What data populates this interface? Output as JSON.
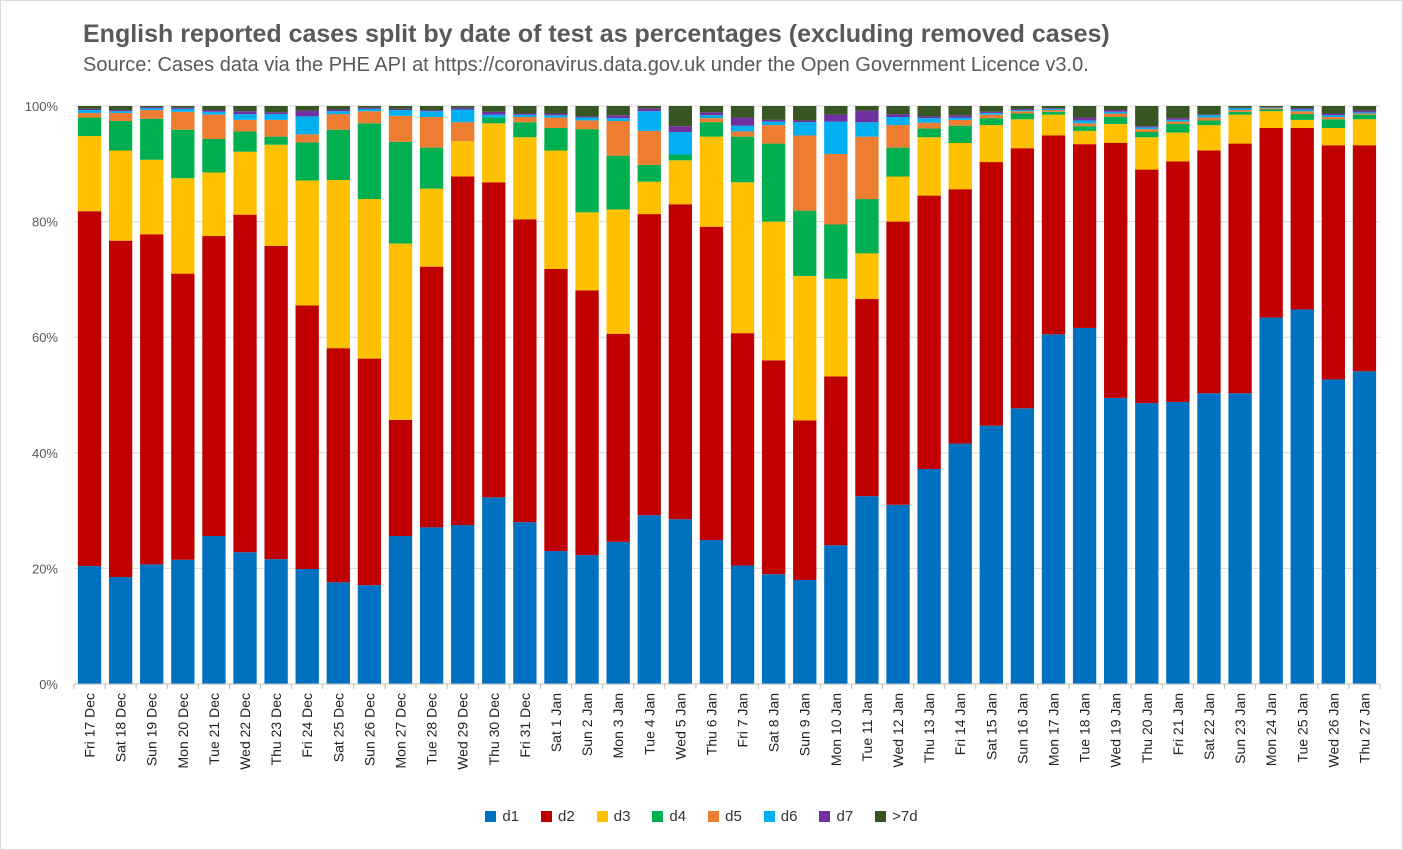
{
  "chart_data": {
    "type": "bar",
    "stacked": true,
    "title": "English reported cases split by date of test as percentages (excluding removed cases)",
    "subtitle": "Source: Cases data via the PHE API at https://coronavirus.data.gov.uk under the Open Government Licence v3.0.",
    "xlabel": "",
    "ylabel": "",
    "ylim": [
      0,
      100
    ],
    "yticks": [
      "0%",
      "20%",
      "40%",
      "60%",
      "80%",
      "100%"
    ],
    "grid": true,
    "legend_position": "bottom",
    "categories": [
      "Fri 17 Dec",
      "Sat 18 Dec",
      "Sun 19 Dec",
      "Mon 20 Dec",
      "Tue 21 Dec",
      "Wed 22 Dec",
      "Thu 23 Dec",
      "Fri 24 Dec",
      "Sat 25 Dec",
      "Sun 26 Dec",
      "Mon 27 Dec",
      "Tue 28 Dec",
      "Wed 29 Dec",
      "Thu 30 Dec",
      "Fri 31 Dec",
      "Sat 1 Jan",
      "Sun 2 Jan",
      "Mon 3 Jan",
      "Tue 4 Jan",
      "Wed 5 Jan",
      "Thu 6 Jan",
      "Fri 7 Jan",
      "Sat 8 Jan",
      "Sun 9 Jan",
      "Mon 10 Jan",
      "Tue 11 Jan",
      "Wed 12 Jan",
      "Thu 13 Jan",
      "Fri 14 Jan",
      "Sat 15 Jan",
      "Sun 16 Jan",
      "Mon 17 Jan",
      "Tue 18 Jan",
      "Wed 19 Jan",
      "Thu 20 Jan",
      "Fri 21 Jan",
      "Sat 22 Jan",
      "Sun 23 Jan",
      "Mon 24 Jan",
      "Tue 25 Jan",
      "Wed 26 Jan",
      "Thu 27 Jan"
    ],
    "series": [
      {
        "name": "d1",
        "color": "#0070c0",
        "values": [
          20.4,
          18.5,
          20.7,
          21.5,
          25.6,
          22.8,
          21.6,
          19.9,
          17.6,
          17.1,
          25.6,
          27.1,
          27.5,
          32.3,
          28.0,
          23.0,
          22.3,
          24.6,
          29.2,
          28.5,
          24.9,
          20.5,
          19.0,
          18.0,
          24.0,
          32.5,
          31.0,
          37.2,
          41.6,
          44.7,
          47.7,
          60.5,
          61.6,
          49.5,
          48.6,
          48.8,
          50.3,
          50.3,
          63.4,
          64.8,
          52.7,
          54.1
        ]
      },
      {
        "name": "d2",
        "color": "#c00000",
        "values": [
          61.4,
          58.2,
          57.1,
          49.5,
          51.9,
          58.4,
          54.2,
          45.6,
          40.5,
          39.2,
          20.1,
          45.1,
          60.3,
          54.5,
          52.4,
          48.8,
          45.8,
          36.0,
          52.1,
          54.5,
          54.2,
          40.2,
          37.0,
          27.6,
          29.2,
          34.1,
          49.0,
          47.3,
          44.0,
          45.6,
          45.0,
          34.4,
          31.8,
          44.1,
          40.4,
          41.6,
          42.0,
          43.2,
          32.8,
          31.4,
          40.5,
          39.1
        ]
      },
      {
        "name": "d3",
        "color": "#ffc000",
        "values": [
          13.0,
          15.6,
          12.9,
          16.5,
          11.0,
          10.9,
          17.5,
          21.6,
          29.1,
          27.6,
          30.5,
          13.5,
          6.1,
          10.2,
          14.2,
          20.5,
          13.5,
          21.5,
          5.6,
          7.6,
          15.6,
          26.1,
          24.0,
          25.0,
          16.9,
          7.9,
          7.8,
          10.1,
          8.0,
          6.4,
          5.0,
          3.6,
          2.3,
          3.3,
          5.6,
          5.0,
          4.4,
          5.0,
          2.9,
          1.4,
          3.0,
          4.5
        ]
      },
      {
        "name": "d4",
        "color": "#00b050",
        "values": [
          3.2,
          5.1,
          7.1,
          8.4,
          5.8,
          3.5,
          1.4,
          6.6,
          8.7,
          13.1,
          17.6,
          7.1,
          0.0,
          1.0,
          2.6,
          3.9,
          14.4,
          9.3,
          2.9,
          1.0,
          2.5,
          7.9,
          13.5,
          11.3,
          9.4,
          9.4,
          5.0,
          1.5,
          3.0,
          1.2,
          1.0,
          0.5,
          0.8,
          1.2,
          0.9,
          1.5,
          0.8,
          0.5,
          0.3,
          1.0,
          1.5,
          0.8
        ]
      },
      {
        "name": "d5",
        "color": "#ed7d31",
        "values": [
          0.8,
          1.4,
          1.5,
          3.1,
          4.2,
          2.0,
          2.9,
          1.4,
          2.7,
          2.1,
          4.5,
          5.3,
          3.3,
          0.0,
          0.9,
          1.8,
          1.5,
          6.0,
          5.9,
          0.0,
          0.7,
          0.9,
          3.2,
          13.0,
          12.2,
          10.8,
          3.9,
          1.0,
          1.0,
          0.6,
          0.4,
          0.3,
          0.5,
          0.6,
          0.5,
          0.4,
          0.5,
          0.3,
          0.2,
          0.5,
          0.4,
          0.2
        ]
      },
      {
        "name": "d6",
        "color": "#00b0f0",
        "values": [
          0.5,
          0.3,
          0.3,
          0.5,
          0.5,
          1.0,
          1.0,
          3.1,
          0.5,
          0.4,
          1.0,
          1.0,
          2.2,
          0.5,
          0.4,
          0.4,
          0.5,
          0.5,
          3.4,
          3.9,
          0.5,
          1.0,
          0.6,
          2.3,
          5.6,
          2.5,
          1.4,
          0.8,
          0.4,
          0.3,
          0.2,
          0.2,
          0.5,
          0.3,
          0.3,
          0.3,
          0.4,
          0.3,
          0.1,
          0.3,
          0.3,
          0.2
        ]
      },
      {
        "name": "d7",
        "color": "#7030a0",
        "values": [
          0.2,
          0.2,
          0.2,
          0.2,
          0.3,
          0.5,
          0.3,
          1.0,
          0.3,
          0.2,
          0.2,
          0.2,
          0.3,
          0.5,
          0.2,
          0.3,
          0.2,
          0.5,
          0.5,
          1.0,
          0.5,
          1.4,
          0.3,
          0.3,
          1.2,
          2.0,
          0.5,
          0.3,
          0.4,
          0.2,
          0.2,
          0.1,
          0.5,
          0.3,
          0.2,
          0.3,
          0.1,
          0.1,
          0.1,
          0.2,
          0.3,
          0.3
        ]
      },
      {
        "name": ">7d",
        "color": "#375623",
        "values": [
          0.5,
          0.7,
          0.2,
          0.3,
          0.7,
          0.9,
          1.1,
          0.8,
          0.6,
          0.3,
          0.5,
          0.7,
          0.3,
          1.0,
          1.3,
          1.3,
          1.8,
          1.6,
          0.4,
          3.5,
          1.1,
          2.0,
          2.4,
          2.5,
          1.5,
          0.8,
          1.4,
          1.8,
          1.6,
          1.0,
          0.5,
          0.4,
          2.0,
          0.7,
          3.5,
          2.1,
          1.5,
          0.3,
          0.2,
          0.4,
          1.3,
          0.8
        ]
      }
    ]
  }
}
